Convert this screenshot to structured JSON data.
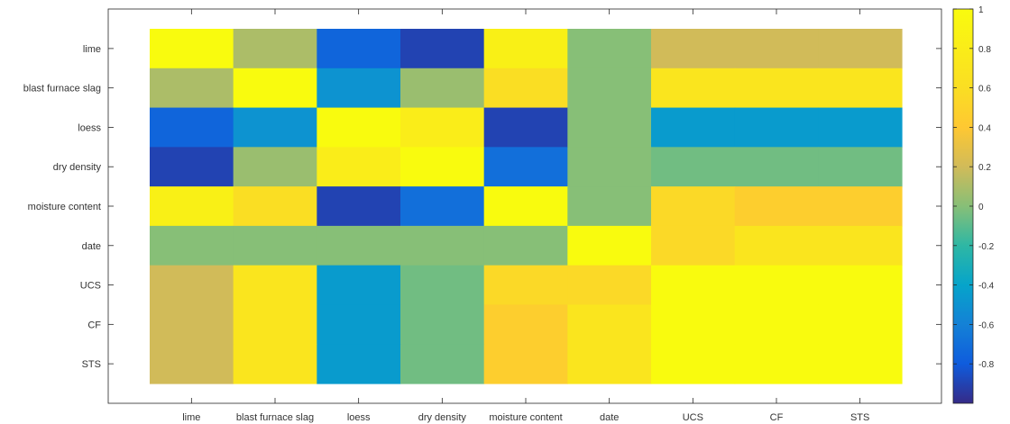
{
  "chart_data": {
    "type": "heatmap",
    "title": "",
    "xlabel": "",
    "ylabel": "",
    "x_labels": [
      "lime",
      "blast furnace slag",
      "loess",
      "dry density",
      "moisture content",
      "date",
      "UCS",
      "CF",
      "STS"
    ],
    "y_labels": [
      "lime",
      "blast furnace slag",
      "loess",
      "dry density",
      "moisture content",
      "date",
      "UCS",
      "CF",
      "STS"
    ],
    "values": [
      [
        1.0,
        0.1,
        -0.75,
        -0.9,
        0.85,
        0.0,
        0.2,
        0.2,
        0.2
      ],
      [
        0.1,
        1.0,
        -0.5,
        0.05,
        0.6,
        0.0,
        0.7,
        0.7,
        0.7
      ],
      [
        -0.75,
        -0.5,
        1.0,
        0.8,
        -0.9,
        0.0,
        -0.45,
        -0.45,
        -0.45
      ],
      [
        -0.9,
        0.05,
        0.8,
        1.0,
        -0.7,
        0.0,
        -0.05,
        -0.05,
        -0.05
      ],
      [
        0.85,
        0.6,
        -0.9,
        -0.7,
        1.0,
        0.0,
        0.55,
        0.45,
        0.45
      ],
      [
        0.0,
        0.0,
        0.0,
        0.0,
        0.0,
        1.0,
        0.55,
        0.7,
        0.7
      ],
      [
        0.2,
        0.7,
        -0.45,
        -0.05,
        0.55,
        0.55,
        1.0,
        1.0,
        1.0
      ],
      [
        0.2,
        0.7,
        -0.45,
        -0.05,
        0.45,
        0.7,
        1.0,
        1.0,
        1.0
      ],
      [
        0.2,
        0.7,
        -0.45,
        -0.05,
        0.45,
        0.7,
        1.0,
        1.0,
        1.0
      ]
    ],
    "zlim": [
      -1,
      1
    ],
    "colorbar_ticks": [
      "1",
      "0.8",
      "0.6",
      "0.4",
      "0.2",
      "0",
      "-0.2",
      "-0.4",
      "-0.6",
      "-0.8"
    ],
    "colormap": "parula",
    "grid": false,
    "colorbar_position": "right"
  }
}
